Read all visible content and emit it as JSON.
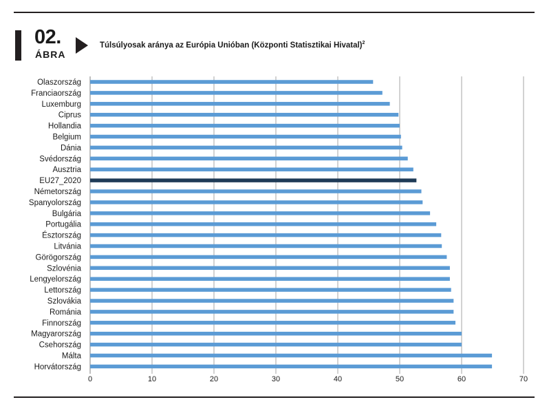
{
  "figure": {
    "number": "02.",
    "word": "ÁBRA",
    "title": "Túlsúlyosak aránya az Európia Unióban (Központi Statisztikai Hivatal)",
    "title_sup": "2"
  },
  "colors": {
    "bar": "#5b9bd5",
    "highlight": "#1f3b57",
    "grid": "#a6a6a6",
    "rule": "#231f20"
  },
  "chart_data": {
    "type": "bar",
    "orientation": "horizontal",
    "categories": [
      "Olaszország",
      "Franciaország",
      "Luxemburg",
      "Ciprus",
      "Hollandia",
      "Belgium",
      "Dánia",
      "Svédország",
      "Ausztria",
      "EU27_2020",
      "Németország",
      "Spanyolország",
      "Bulgária",
      "Portugália",
      "Észtország",
      "Litvánia",
      "Görögország",
      "Szlovénia",
      "Lengyelország",
      "Lettország",
      "Szlovákia",
      "Románia",
      "Finnország",
      "Magyarország",
      "Csehország",
      "Málta",
      "Horvátország"
    ],
    "values": [
      45.7,
      47.2,
      48.4,
      49.8,
      50.0,
      50.2,
      50.4,
      51.3,
      52.2,
      52.7,
      53.5,
      53.7,
      54.9,
      55.9,
      56.7,
      56.8,
      57.6,
      58.1,
      58.1,
      58.3,
      58.7,
      58.7,
      59.0,
      60.0,
      60.0,
      64.9,
      64.9
    ],
    "highlight": "EU27_2020",
    "xlim": [
      0,
      70
    ],
    "xticks": [
      "0",
      "10",
      "20",
      "30",
      "40",
      "50",
      "60",
      "70"
    ],
    "grid": true
  }
}
